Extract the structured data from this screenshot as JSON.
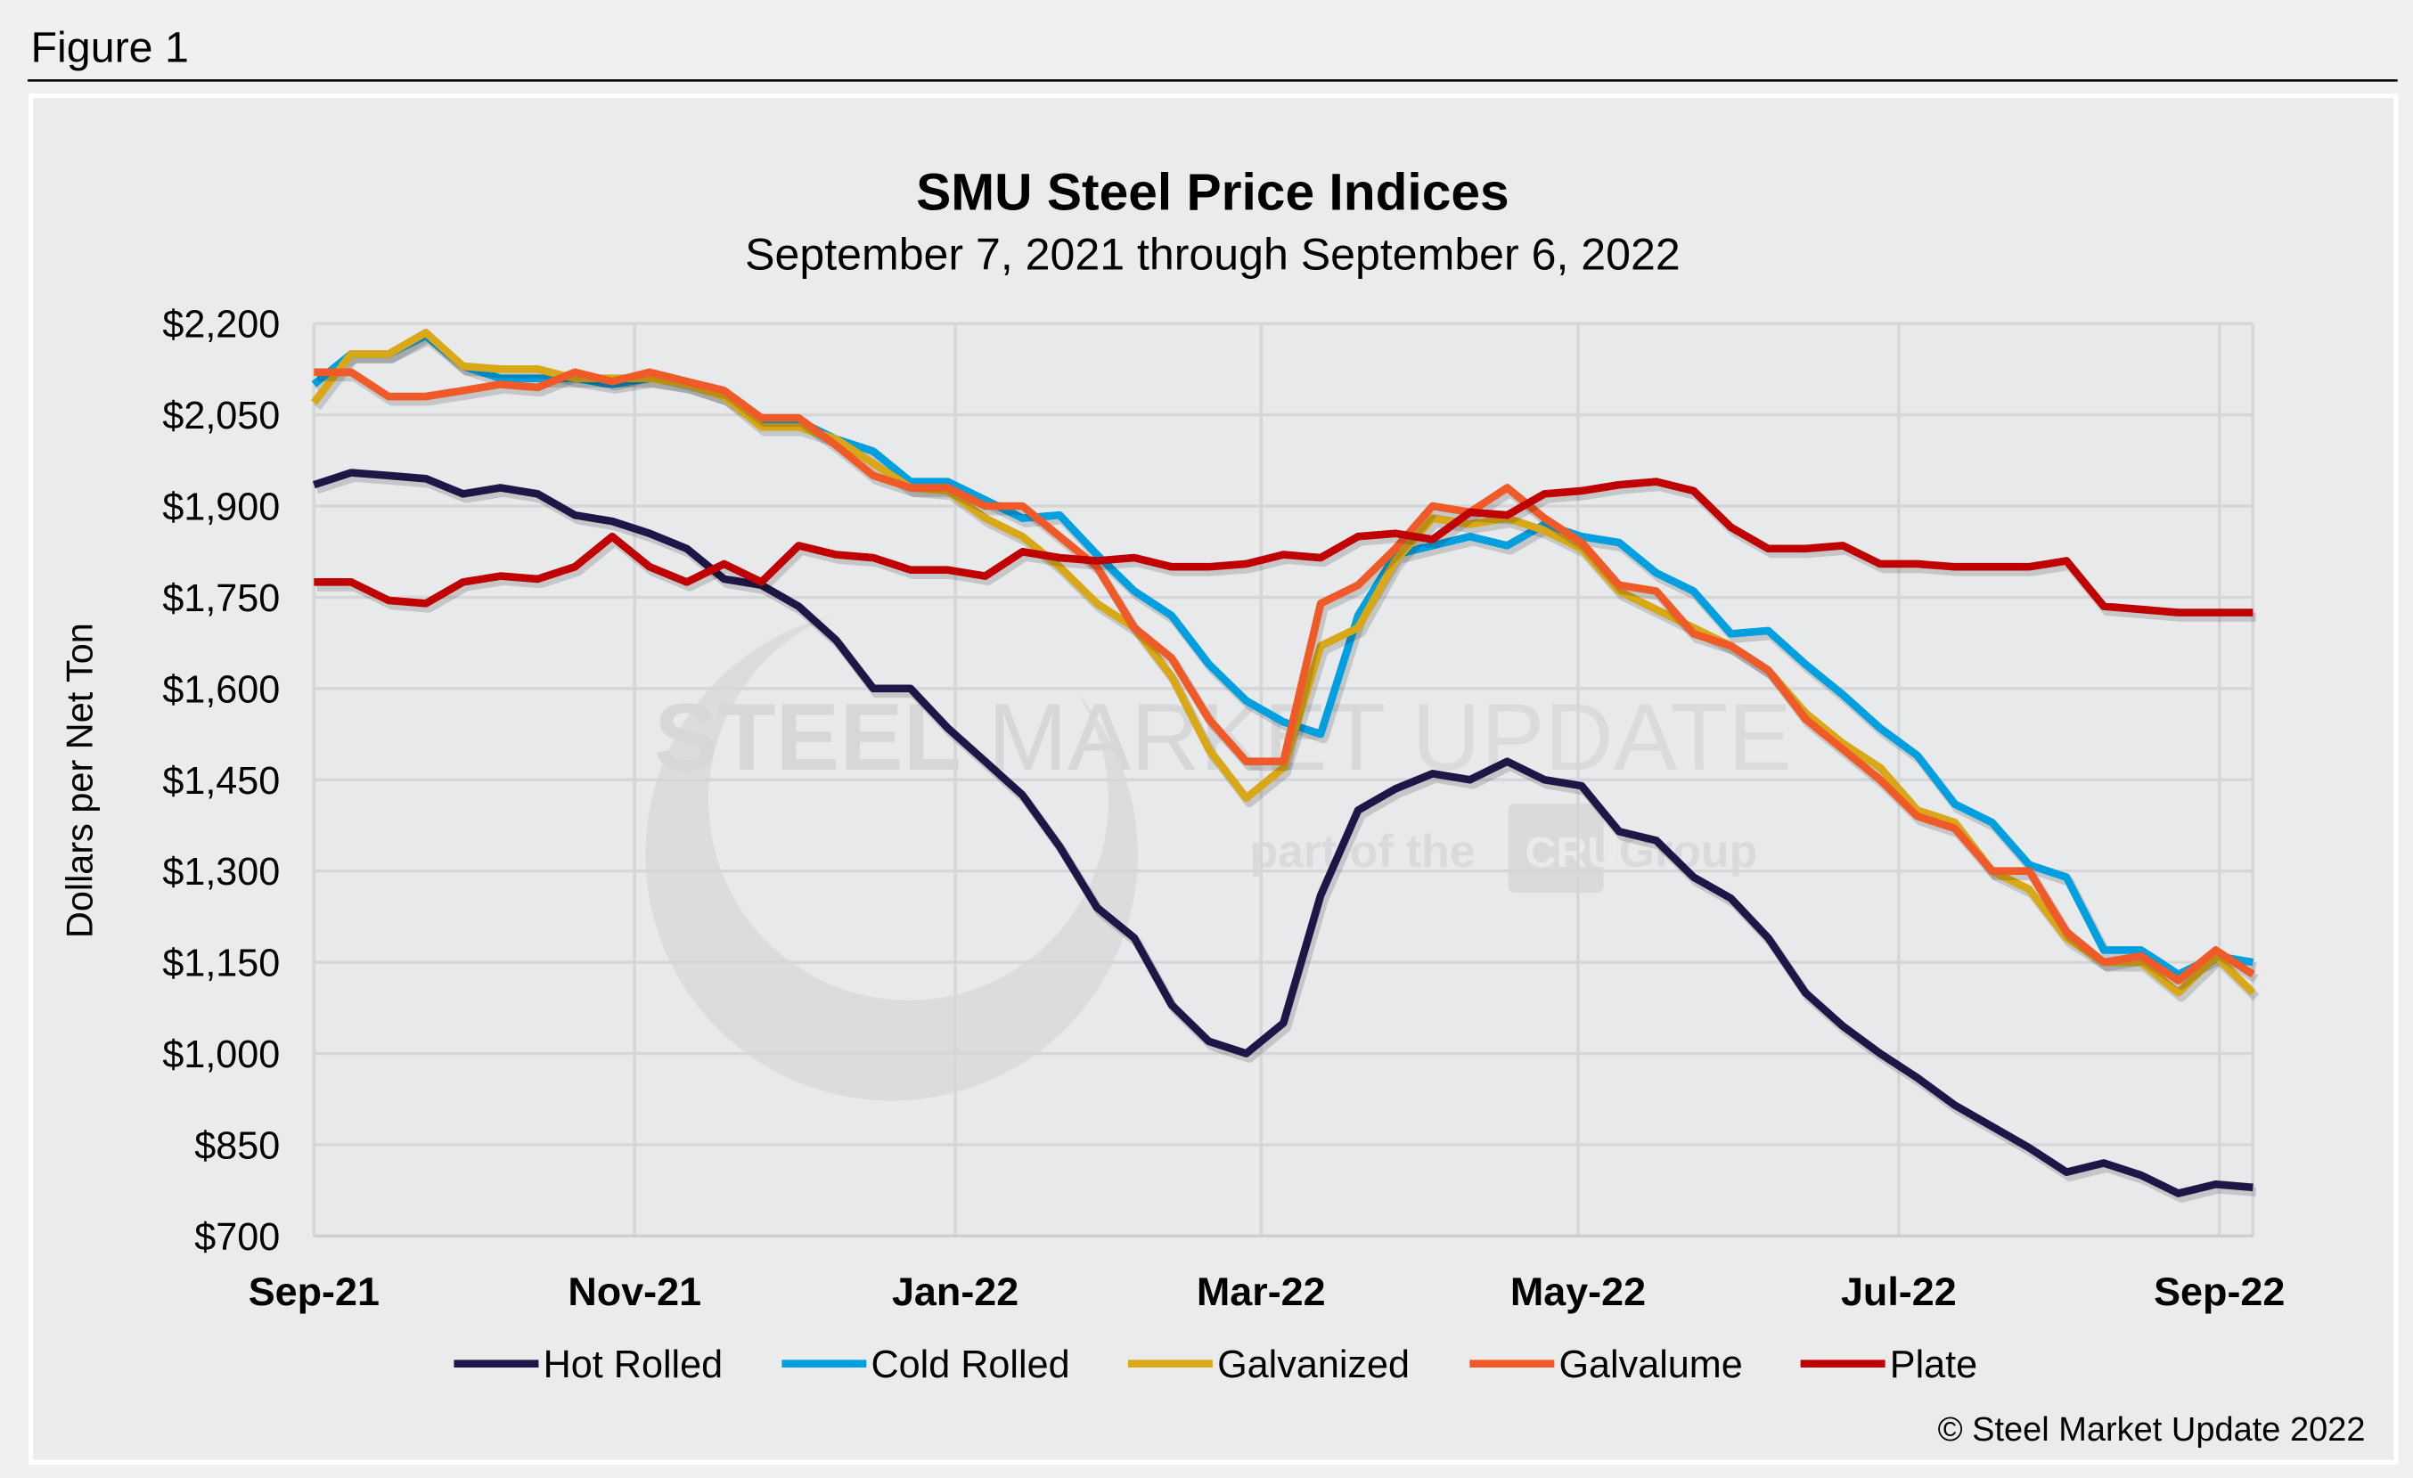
{
  "figure_label": "Figure 1",
  "watermark": {
    "line1_bold": "STEEL",
    "line1_mid": "MARKET",
    "line1_light": "UPDATE",
    "line2_left": "part of the",
    "line2_logo": "CRU",
    "line2_right": "Group"
  },
  "copyright": "© Steel Market Update 2022",
  "chart_data": {
    "type": "line",
    "title": "SMU Steel Price Indices",
    "subtitle": "September 7, 2021 through September 6, 2022",
    "ylabel": "Dollars per Net Ton",
    "xlabel": "",
    "ylim": [
      700,
      2200
    ],
    "yticks": [
      700,
      850,
      1000,
      1150,
      1300,
      1450,
      1600,
      1750,
      1900,
      2050,
      2200
    ],
    "ytick_labels": [
      "$700",
      "$850",
      "$1,000",
      "$1,150",
      "$1,300",
      "$1,450",
      "$1,600",
      "$1,750",
      "$1,900",
      "$2,050",
      "$2,200"
    ],
    "x_unit": "week index from Sep 7, 2021",
    "xlim": [
      0,
      52
    ],
    "xticks": [
      {
        "label": "Sep-21",
        "week": 0
      },
      {
        "label": "Nov-21",
        "week": 8.6
      },
      {
        "label": "Jan-22",
        "week": 17.2
      },
      {
        "label": "Mar-22",
        "week": 25.4
      },
      {
        "label": "May-22",
        "week": 33.9
      },
      {
        "label": "Jul-22",
        "week": 42.5
      },
      {
        "label": "Sep-22",
        "week": 51.1
      }
    ],
    "grid": true,
    "legend_position": "bottom",
    "series": [
      {
        "name": "Hot Rolled",
        "color": "#1e1646",
        "values": [
          1935,
          1955,
          1950,
          1945,
          1920,
          1930,
          1920,
          1885,
          1875,
          1855,
          1830,
          1780,
          1770,
          1735,
          1680,
          1600,
          1600,
          1535,
          1480,
          1425,
          1340,
          1240,
          1190,
          1080,
          1020,
          1000,
          1050,
          1260,
          1400,
          1435,
          1460,
          1450,
          1480,
          1450,
          1440,
          1365,
          1350,
          1290,
          1255,
          1190,
          1100,
          1045,
          1000,
          960,
          915,
          880,
          845,
          805,
          820,
          800,
          770,
          785,
          780
        ]
      },
      {
        "name": "Cold Rolled",
        "color": "#00a0e0",
        "values": [
          2100,
          2150,
          2150,
          2180,
          2130,
          2110,
          2110,
          2110,
          2100,
          2110,
          2100,
          2080,
          2040,
          2040,
          2010,
          1990,
          1940,
          1940,
          1910,
          1880,
          1885,
          1820,
          1760,
          1720,
          1640,
          1580,
          1545,
          1525,
          1720,
          1820,
          1835,
          1850,
          1835,
          1870,
          1850,
          1840,
          1790,
          1760,
          1690,
          1695,
          1640,
          1590,
          1535,
          1490,
          1410,
          1380,
          1310,
          1290,
          1170,
          1170,
          1130,
          1160,
          1150
        ]
      },
      {
        "name": "Galvanized",
        "color": "#d9a818",
        "values": [
          2070,
          2150,
          2150,
          2185,
          2130,
          2125,
          2125,
          2110,
          2110,
          2110,
          2100,
          2080,
          2030,
          2030,
          2010,
          1970,
          1930,
          1925,
          1880,
          1850,
          1800,
          1740,
          1700,
          1620,
          1500,
          1420,
          1470,
          1670,
          1700,
          1810,
          1880,
          1870,
          1880,
          1860,
          1830,
          1760,
          1730,
          1700,
          1670,
          1630,
          1560,
          1510,
          1470,
          1400,
          1380,
          1300,
          1270,
          1190,
          1150,
          1150,
          1100,
          1160,
          1100
        ]
      },
      {
        "name": "Galvalume",
        "color": "#f05a28",
        "values": [
          2120,
          2120,
          2080,
          2080,
          2090,
          2100,
          2095,
          2120,
          2105,
          2120,
          2105,
          2090,
          2045,
          2045,
          2000,
          1950,
          1930,
          1930,
          1900,
          1900,
          1850,
          1800,
          1700,
          1650,
          1550,
          1480,
          1480,
          1740,
          1770,
          1830,
          1900,
          1890,
          1930,
          1880,
          1840,
          1770,
          1760,
          1690,
          1670,
          1630,
          1550,
          1500,
          1450,
          1390,
          1370,
          1300,
          1300,
          1200,
          1150,
          1160,
          1120,
          1170,
          1130
        ]
      },
      {
        "name": "Plate",
        "color": "#c00000",
        "values": [
          1775,
          1775,
          1745,
          1740,
          1775,
          1785,
          1780,
          1800,
          1850,
          1800,
          1775,
          1805,
          1775,
          1835,
          1820,
          1815,
          1795,
          1795,
          1785,
          1825,
          1815,
          1810,
          1815,
          1800,
          1800,
          1805,
          1820,
          1815,
          1850,
          1855,
          1845,
          1890,
          1885,
          1920,
          1925,
          1935,
          1940,
          1925,
          1865,
          1830,
          1830,
          1835,
          1805,
          1805,
          1800,
          1800,
          1800,
          1810,
          1735,
          1730,
          1725,
          1725,
          1725
        ]
      }
    ]
  }
}
